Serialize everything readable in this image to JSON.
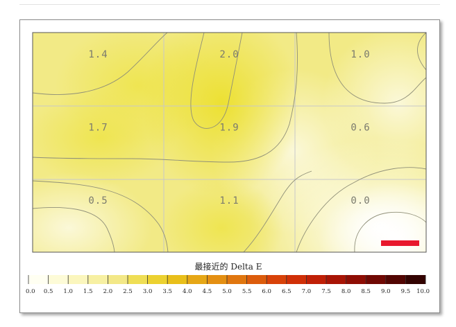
{
  "chart_data": {
    "type": "heatmap",
    "rows": 3,
    "cols": 3,
    "values": [
      [
        1.4,
        2.0,
        1.0
      ],
      [
        1.7,
        1.9,
        0.6
      ],
      [
        0.5,
        1.1,
        0.0
      ]
    ],
    "labels": [
      [
        "1.4",
        "2.0",
        "1.0"
      ],
      [
        "1.7",
        "1.9",
        "0.6"
      ],
      [
        "0.5",
        "1.1",
        "0.0"
      ]
    ],
    "colorbar": {
      "title": "最接近的 Delta E",
      "min": 0.0,
      "max": 10.0,
      "tick_labels": [
        "0.0",
        "0.5",
        "1.0",
        "1.5",
        "2.0",
        "2.5",
        "3.0",
        "3.5",
        "4.0",
        "4.5",
        "5.0",
        "5.5",
        "6.0",
        "6.5",
        "7.0",
        "7.5",
        "8.0",
        "8.5",
        "9.0",
        "9.5",
        "10.0"
      ],
      "colors": [
        "#fffff2",
        "#fdfbd7",
        "#fbf6bd",
        "#f7f0a2",
        "#f3e887",
        "#efde55",
        "#ecd130",
        "#e9bf1a",
        "#e6a716",
        "#e48f12",
        "#e0760f",
        "#dc5c0c",
        "#d84209",
        "#d02f07",
        "#c01f06",
        "#a81405",
        "#8e0d04",
        "#700803",
        "#520502",
        "#330301"
      ]
    },
    "marker_color": "#e8192c"
  }
}
